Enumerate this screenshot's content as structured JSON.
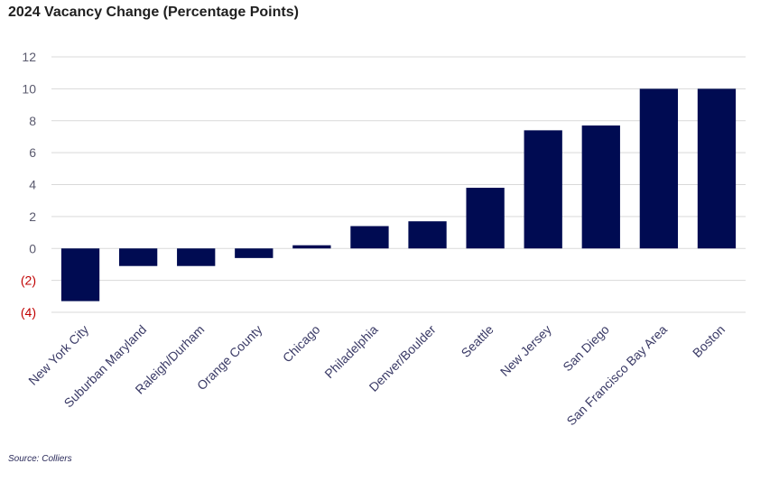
{
  "title": "2024 Vacancy Change (Percentage Points)",
  "source": "Source: Colliers",
  "colors": {
    "bar": "#000b52",
    "grid": "#d9d9d9",
    "negative_tick": "#c00000"
  },
  "chart_data": {
    "type": "bar",
    "title": "2024 Vacancy Change (Percentage Points)",
    "xlabel": "",
    "ylabel": "",
    "ylim": [
      -4,
      12
    ],
    "yticks": [
      12,
      10,
      8,
      6,
      4,
      2,
      0,
      -2,
      -4
    ],
    "ytick_labels": [
      "12",
      "10",
      "8",
      "6",
      "4",
      "2",
      "0",
      "(2)",
      "(4)"
    ],
    "grid": true,
    "categories": [
      "New York City",
      "Suburban Maryland",
      "Raleigh/Durham",
      "Orange County",
      "Chicago",
      "Philadelphia",
      "Denver/Boulder",
      "Seattle",
      "New Jersey",
      "San Diego",
      "San Francisco Bay Area",
      "Boston"
    ],
    "values": [
      -3.3,
      -1.1,
      -1.1,
      -0.6,
      0.2,
      1.4,
      1.7,
      3.8,
      7.4,
      7.7,
      10.0,
      10.0
    ]
  }
}
